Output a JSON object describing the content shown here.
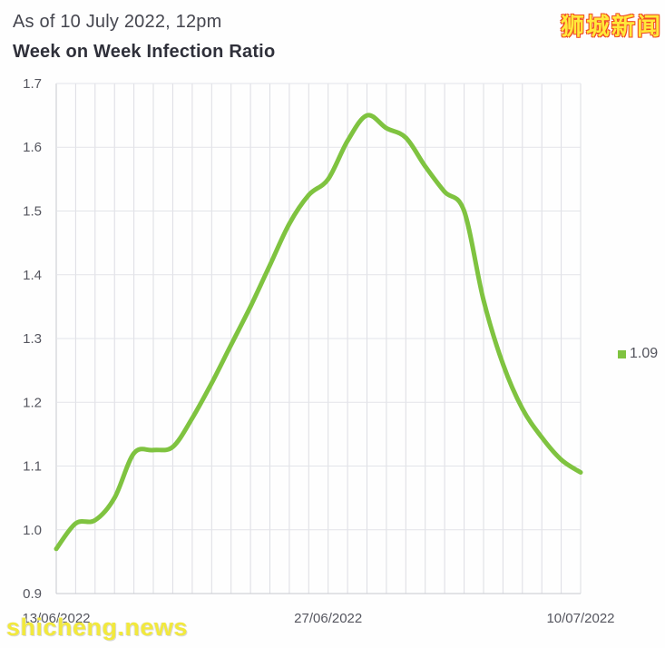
{
  "header": {
    "as_of": "As of 10 July 2022, 12pm",
    "title": "Week on Week Infection Ratio",
    "site_logo": "狮城新闻"
  },
  "watermark": "shicheng.news",
  "legend": {
    "value": "1.09"
  },
  "colors": {
    "line": "#7fc340",
    "legend_swatch": "#7fc340",
    "grid_vertical": "#dcdde3",
    "grid_horizontal": "#e3e4e9",
    "axis": "#c7c8cf",
    "tick_text": "#55565f",
    "title_text": "#2f303a",
    "subtitle_text": "#45464f",
    "logo_fill": "#ffe93a",
    "logo_outline": "#f04b23",
    "watermark_text": "#f2e93c"
  },
  "chart_data": {
    "type": "line",
    "title": "Week on Week Infection Ratio",
    "subtitle": "As of 10 July 2022, 12pm",
    "series_name": "Week on Week Infection Ratio",
    "x": [
      "13/06/2022",
      "14/06/2022",
      "15/06/2022",
      "16/06/2022",
      "17/06/2022",
      "18/06/2022",
      "19/06/2022",
      "20/06/2022",
      "21/06/2022",
      "22/06/2022",
      "23/06/2022",
      "24/06/2022",
      "25/06/2022",
      "26/06/2022",
      "27/06/2022",
      "28/06/2022",
      "29/06/2022",
      "30/06/2022",
      "01/07/2022",
      "02/07/2022",
      "03/07/2022",
      "04/07/2022",
      "05/07/2022",
      "06/07/2022",
      "07/07/2022",
      "08/07/2022",
      "09/07/2022",
      "10/07/2022"
    ],
    "values": [
      0.97,
      1.01,
      1.015,
      1.05,
      1.12,
      1.125,
      1.13,
      1.175,
      1.23,
      1.29,
      1.35,
      1.415,
      1.48,
      1.525,
      1.55,
      1.61,
      1.65,
      1.63,
      1.615,
      1.57,
      1.53,
      1.5,
      1.36,
      1.26,
      1.19,
      1.145,
      1.11,
      1.09
    ],
    "last_value_label": "1.09",
    "ylim": [
      0.9,
      1.7
    ],
    "y_ticks": [
      0.9,
      1.0,
      1.1,
      1.2,
      1.3,
      1.4,
      1.5,
      1.6,
      1.7
    ],
    "x_tick_labels": [
      {
        "index": 0,
        "label": "13/06/2022"
      },
      {
        "index": 14,
        "label": "27/06/2022"
      },
      {
        "index": 27,
        "label": "10/07/2022"
      }
    ],
    "grid": true,
    "line_color": "#7fc340",
    "legend_position": "right-middle"
  }
}
